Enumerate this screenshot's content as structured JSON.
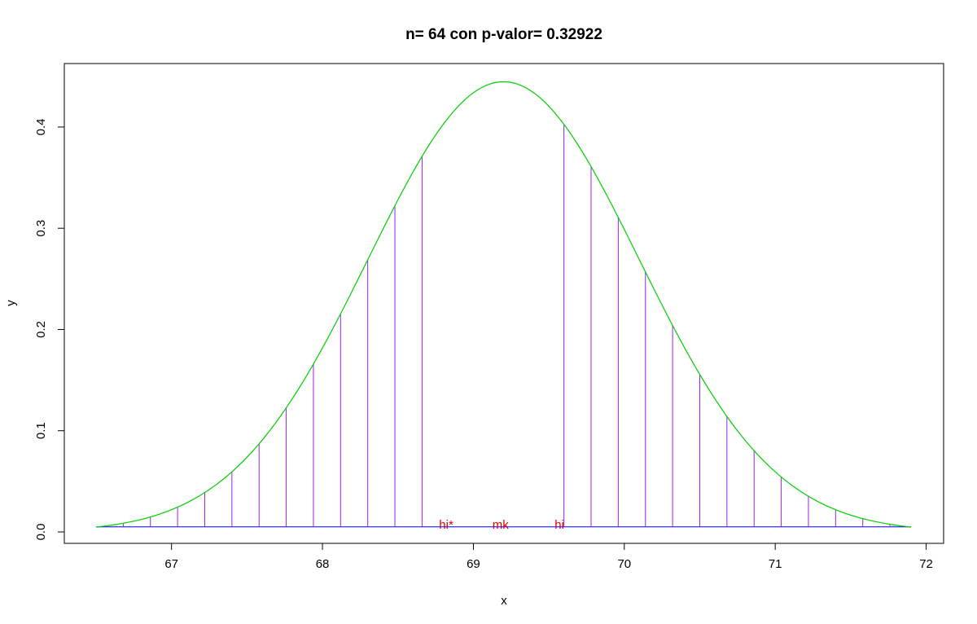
{
  "chart_data": {
    "type": "line",
    "title": "n= 64  con p-valor= 0.32922",
    "xlabel": "x",
    "ylabel": "y",
    "xlim": [
      66.5,
      71.9
    ],
    "ylim": [
      0,
      0.445
    ],
    "x_ticks": [
      67,
      68,
      69,
      70,
      71,
      72
    ],
    "x_tick_labels": [
      "67",
      "68",
      "69",
      "70",
      "71",
      "72"
    ],
    "y_ticks": [
      0.0,
      0.1,
      0.2,
      0.3,
      0.4
    ],
    "y_tick_labels": [
      "0.0",
      "0.1",
      "0.2",
      "0.3",
      "0.4"
    ],
    "grid": false,
    "curve": {
      "type": "normal_density",
      "mean": 69.2,
      "sd": 0.897,
      "x_range": [
        66.5,
        71.9
      ],
      "color": "#00cc00"
    },
    "baseline": {
      "y": 0.005,
      "x_range": [
        66.5,
        71.9
      ],
      "color": "#0000ff"
    },
    "spikes": {
      "color": "#a020f0",
      "x": [
        66.5,
        66.68,
        66.86,
        67.04,
        67.22,
        67.4,
        67.58,
        67.76,
        67.94,
        68.12,
        68.3,
        68.48,
        68.66,
        69.6,
        69.78,
        69.96,
        70.14,
        70.32,
        70.5,
        70.68,
        70.86,
        71.04,
        71.22,
        71.4,
        71.58,
        71.76
      ]
    },
    "annotations": [
      {
        "text": "hi*",
        "x": 68.82,
        "y": 0.004,
        "color": "#dd0000"
      },
      {
        "text": "mk",
        "x": 69.18,
        "y": 0.004,
        "color": "#dd0000"
      },
      {
        "text": "hi",
        "x": 69.57,
        "y": 0.004,
        "color": "#dd0000"
      }
    ]
  }
}
